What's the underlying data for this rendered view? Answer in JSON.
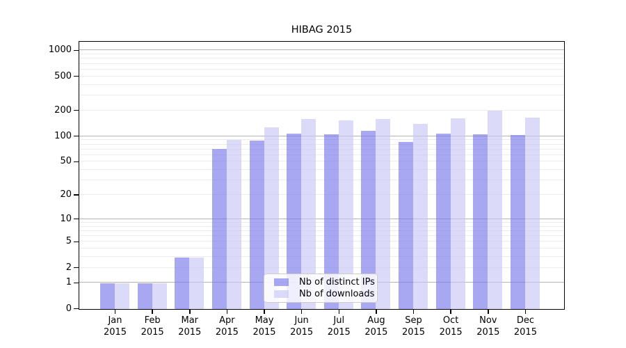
{
  "chart_data": {
    "type": "bar",
    "title": "HIBAG 2015",
    "year": "2015",
    "categories": [
      "Jan",
      "Feb",
      "Mar",
      "Apr",
      "May",
      "Jun",
      "Jul",
      "Aug",
      "Sep",
      "Oct",
      "Nov",
      "Dec"
    ],
    "series": [
      {
        "name": "Nb of distinct IPs",
        "color": "rgba(120,120,235,0.65)",
        "values": [
          1,
          1,
          3,
          71,
          90,
          108,
          107,
          117,
          87,
          109,
          107,
          104
        ]
      },
      {
        "name": "Nb of downloads",
        "color": "rgba(200,200,246,0.65)",
        "values": [
          1,
          1,
          3,
          92,
          127,
          160,
          155,
          161,
          142,
          164,
          201,
          166
        ]
      }
    ],
    "y_axis": {
      "scale": "log1p",
      "ticks": [
        0,
        1,
        2,
        5,
        10,
        20,
        50,
        100,
        200,
        500,
        1000
      ],
      "max": 1250
    },
    "x_axis": {
      "label_lines": 2
    },
    "grid": {
      "minor_color": "#ececec",
      "major_color": "#b3b3b3",
      "major_at": [
        1,
        10,
        100,
        1000
      ],
      "minor_decades": [
        1,
        10,
        100
      ]
    },
    "legend": {
      "position": "bottom-center"
    },
    "frame_color": "#000000",
    "background": "#ffffff"
  }
}
